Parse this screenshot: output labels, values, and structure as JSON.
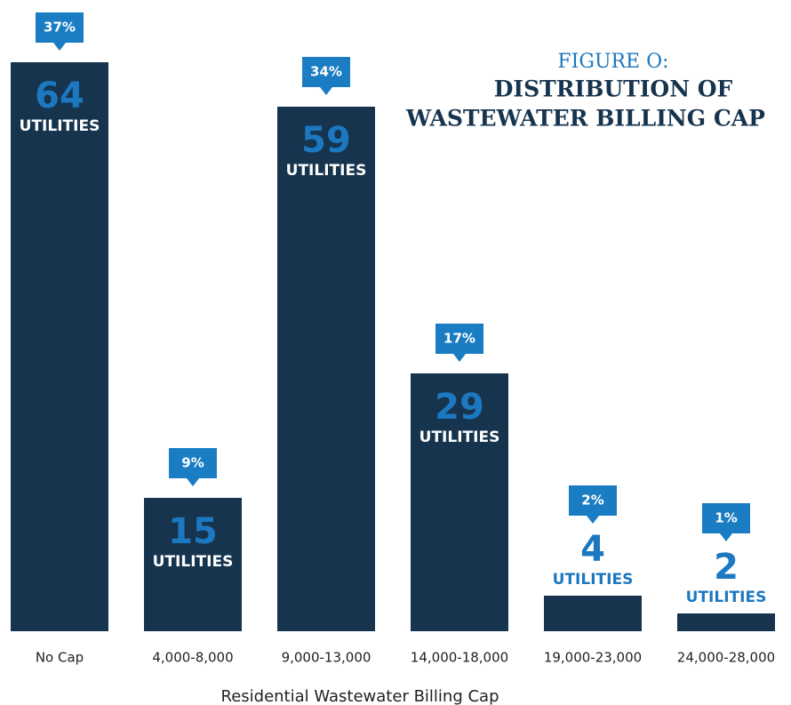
{
  "chart_data": {
    "type": "bar",
    "title": [
      "FIGURE O:",
      "DISTRIBUTION OF",
      "WASTEWATER BILLING CAP"
    ],
    "x_label": "Residential Wastewater Billing Cap",
    "categories": [
      "No Cap",
      "4,000-8,000",
      "9,000-13,000",
      "14,000-18,000",
      "19,000-23,000",
      "24,000-28,000"
    ],
    "values": [
      64,
      15,
      59,
      29,
      4,
      2
    ],
    "unit_label": "UTILITIES",
    "shares": [
      37,
      9,
      34,
      17,
      2,
      1
    ],
    "share_labels": [
      "37%",
      "9%",
      "34%",
      "17%",
      "2%",
      "1%"
    ],
    "color": "#17344f",
    "label_color": "#1c78c0"
  }
}
